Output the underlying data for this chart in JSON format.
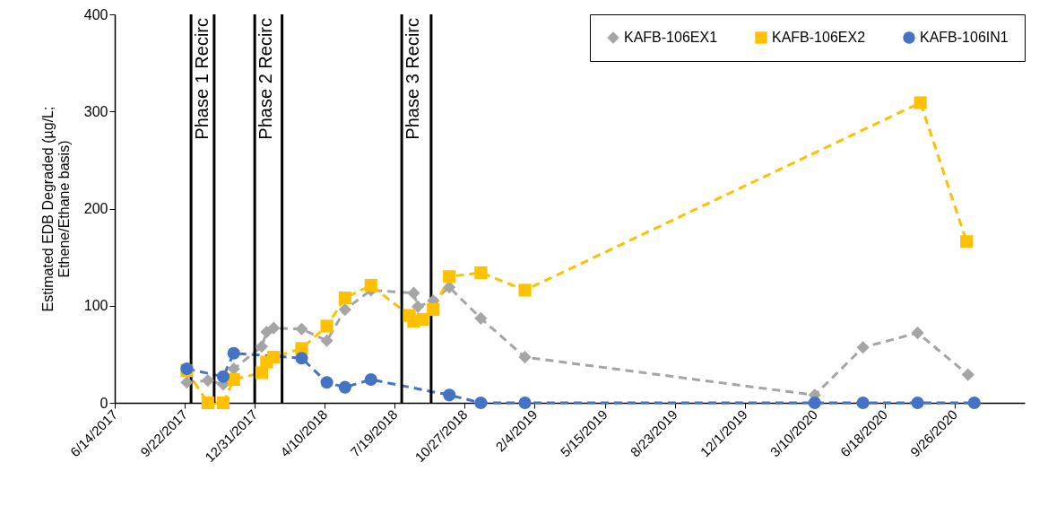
{
  "chart_data": {
    "type": "line",
    "ylabel": "Estimated EDB Degraded  (µg/L;\nEthene/Ethane basis)",
    "xlim": [
      "2017-06-14",
      "2021-01-04"
    ],
    "ylim": [
      0,
      400
    ],
    "yticks": [
      0,
      100,
      200,
      300,
      400
    ],
    "xticks": [
      {
        "value": "2017-06-14",
        "label": "6/14/2017"
      },
      {
        "value": "2017-09-22",
        "label": "9/22/2017"
      },
      {
        "value": "2017-12-31",
        "label": "12/31/2017"
      },
      {
        "value": "2018-04-10",
        "label": "4/10/2018"
      },
      {
        "value": "2018-07-19",
        "label": "7/19/2018"
      },
      {
        "value": "2018-10-27",
        "label": "10/27/2018"
      },
      {
        "value": "2019-02-04",
        "label": "2/4/2019"
      },
      {
        "value": "2019-05-15",
        "label": "5/15/2019"
      },
      {
        "value": "2019-08-23",
        "label": "8/23/2019"
      },
      {
        "value": "2019-12-01",
        "label": "12/1/2019"
      },
      {
        "value": "2020-03-10",
        "label": "3/10/2020"
      },
      {
        "value": "2020-06-18",
        "label": "6/18/2020"
      },
      {
        "value": "2020-09-26",
        "label": "9/26/2020"
      }
    ],
    "grid": false,
    "legend": "top right",
    "line_style": "dashed",
    "series": [
      {
        "name": "KAFB-106EX1",
        "color": "#a5a5a5",
        "marker": "diamond",
        "x": [
          "2017-09-25",
          "2017-10-25",
          "2017-11-16",
          "2017-12-01",
          "2018-01-10",
          "2018-01-17",
          "2018-01-27",
          "2018-03-08",
          "2018-04-13",
          "2018-05-09",
          "2018-06-15",
          "2018-08-15",
          "2018-08-21",
          "2018-09-12",
          "2018-10-05",
          "2018-11-19",
          "2019-01-21",
          "2020-03-10",
          "2020-05-18",
          "2020-08-04",
          "2020-10-15"
        ],
        "values": [
          21,
          23,
          19,
          35,
          58,
          73,
          77,
          76,
          64,
          96,
          116,
          113,
          99,
          105,
          119,
          87,
          47,
          8,
          57,
          72,
          29
        ]
      },
      {
        "name": "KAFB-106EX2",
        "color": "#ffc000",
        "marker": "square",
        "x": [
          "2017-09-25",
          "2017-10-25",
          "2017-11-16",
          "2017-12-01",
          "2018-01-10",
          "2018-01-17",
          "2018-01-27",
          "2018-03-08",
          "2018-04-13",
          "2018-05-09",
          "2018-06-15",
          "2018-08-09",
          "2018-08-15",
          "2018-08-28",
          "2018-09-12",
          "2018-10-05",
          "2018-11-19",
          "2019-01-21",
          "2020-08-08",
          "2020-10-13"
        ],
        "values": [
          33,
          0,
          0,
          24,
          31,
          42,
          47,
          56,
          79,
          108,
          121,
          90,
          84,
          86,
          96,
          130,
          134,
          116,
          309,
          166
        ]
      },
      {
        "name": "KAFB-106IN1",
        "color": "#4472c4",
        "marker": "circle",
        "x": [
          "2017-09-25",
          "2017-11-16",
          "2017-12-01",
          "2018-03-08",
          "2018-04-13",
          "2018-05-09",
          "2018-06-15",
          "2018-10-05",
          "2018-11-19",
          "2019-01-21",
          "2020-03-10",
          "2020-05-18",
          "2020-08-04",
          "2020-10-24"
        ],
        "values": [
          35,
          27,
          51,
          46,
          21,
          16,
          24,
          8,
          0,
          0,
          0,
          0,
          0,
          0
        ]
      }
    ],
    "ref_lines": [
      {
        "axis": "x",
        "value": "2017-10-01",
        "label": "Phase 1 Recirc"
      },
      {
        "axis": "x",
        "value": "2017-11-03",
        "label": null
      },
      {
        "axis": "x",
        "value": "2017-12-31",
        "label": "Phase 2 Recirc"
      },
      {
        "axis": "x",
        "value": "2018-02-08",
        "label": null
      },
      {
        "axis": "x",
        "value": "2018-07-29",
        "label": "Phase 3 Recirc"
      },
      {
        "axis": "x",
        "value": "2018-09-09",
        "label": null
      }
    ]
  }
}
